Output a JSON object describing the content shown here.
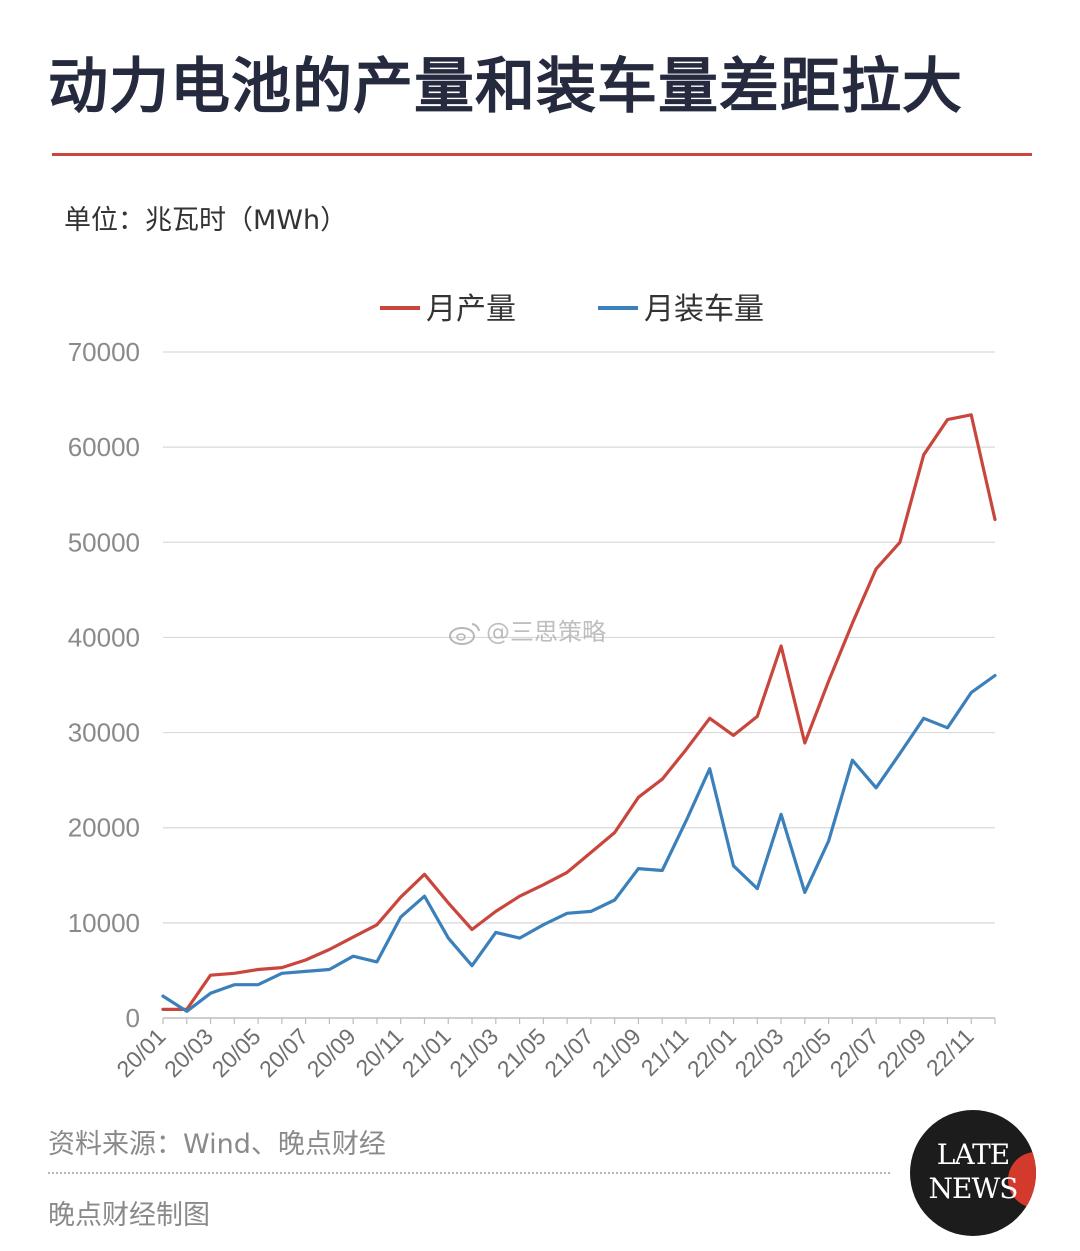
{
  "title": "动力电池的产量和装车量差距拉大",
  "unit_label": "单位：兆瓦时（MWh）",
  "watermark": "@三思策略",
  "footer": {
    "source": "资料来源：Wind、晚点财经",
    "credit": "晚点财经制图"
  },
  "logo": {
    "line1": "LATE",
    "line2": "NEWS"
  },
  "colors": {
    "production": "#c9463d",
    "installed": "#3b80ba",
    "accent": "#c9463d",
    "title": "#252a3e"
  },
  "chart_data": {
    "type": "line",
    "title": "动力电池的产量和装车量差距拉大",
    "ylabel": "单位：兆瓦时（MWh）",
    "xlabel": "",
    "ylim": [
      0,
      70000
    ],
    "yticks": [
      0,
      10000,
      20000,
      30000,
      40000,
      50000,
      60000,
      70000
    ],
    "xtick_labels": [
      "20/01",
      "20/03",
      "20/05",
      "20/07",
      "20/09",
      "20/11",
      "21/01",
      "21/03",
      "21/05",
      "21/07",
      "21/09",
      "21/11",
      "22/01",
      "22/03",
      "22/05",
      "22/07",
      "22/09",
      "22/11"
    ],
    "legend_position": "top-center",
    "grid": true,
    "x": [
      "20/01",
      "20/02",
      "20/03",
      "20/04",
      "20/05",
      "20/06",
      "20/07",
      "20/08",
      "20/09",
      "20/10",
      "20/11",
      "20/12",
      "21/01",
      "21/02",
      "21/03",
      "21/04",
      "21/05",
      "21/06",
      "21/07",
      "21/08",
      "21/09",
      "21/10",
      "21/11",
      "21/12",
      "22/01",
      "22/02",
      "22/03",
      "22/04",
      "22/05",
      "22/06",
      "22/07",
      "22/08",
      "22/09",
      "22/10",
      "22/11",
      "22/12"
    ],
    "series": [
      {
        "name": "月产量",
        "color": "#c9463d",
        "values": [
          900,
          900,
          4500,
          4700,
          5100,
          5300,
          6100,
          7200,
          8500,
          9800,
          12700,
          15100,
          12100,
          9300,
          11200,
          12800,
          14000,
          15300,
          17400,
          19500,
          23200,
          25100,
          28200,
          31500,
          29700,
          31700,
          39100,
          28900,
          35400,
          41500,
          47200,
          50000,
          59200,
          62900,
          63400,
          52400
        ]
      },
      {
        "name": "月装车量",
        "color": "#3b80ba",
        "values": [
          2300,
          700,
          2600,
          3500,
          3500,
          4700,
          4900,
          5100,
          6500,
          5900,
          10600,
          12800,
          8400,
          5500,
          9000,
          8400,
          9800,
          11000,
          11200,
          12400,
          15700,
          15500,
          20700,
          26200,
          16000,
          13600,
          21400,
          13200,
          18600,
          27100,
          24200,
          27800,
          31500,
          30500,
          34200,
          36000
        ]
      }
    ]
  }
}
